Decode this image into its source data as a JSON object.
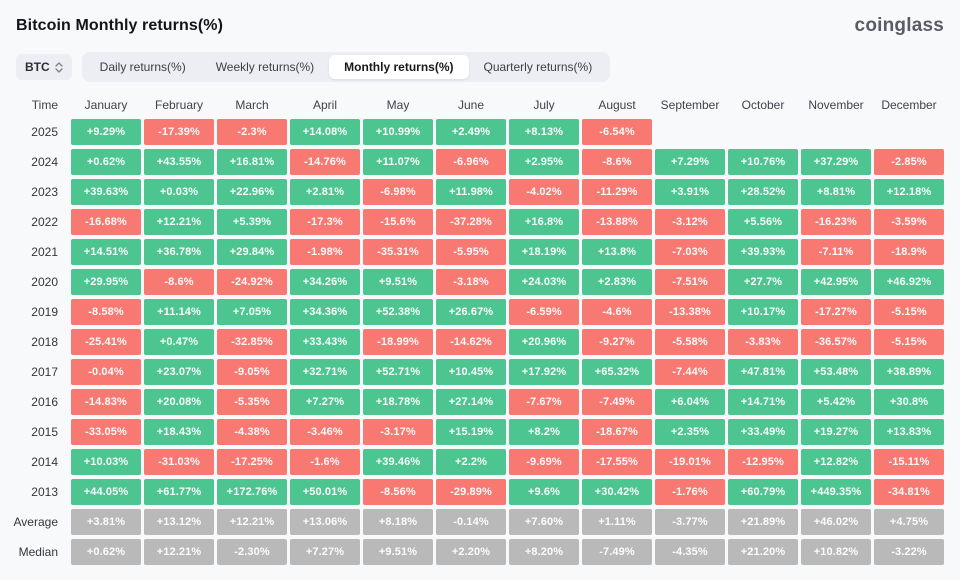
{
  "header": {
    "title": "Bitcoin Monthly returns(%)",
    "logo": "coinglass"
  },
  "controls": {
    "symbol": "BTC",
    "unfold_icon": "unfold-more-icon",
    "tabs": [
      {
        "label": "Daily returns(%)",
        "active": false
      },
      {
        "label": "Weekly returns(%)",
        "active": false
      },
      {
        "label": "Monthly returns(%)",
        "active": true
      },
      {
        "label": "Quarterly returns(%)",
        "active": false
      }
    ]
  },
  "colors": {
    "positive": "#4dc591",
    "negative": "#f87872",
    "summary": "#b9b9b9",
    "tab_bg": "#eceef3",
    "page_bg": "#f8f9fb"
  },
  "chart_data": {
    "type": "heatmap",
    "title": "Bitcoin Monthly returns(%)",
    "time_header": "Time",
    "months": [
      "January",
      "February",
      "March",
      "April",
      "May",
      "June",
      "July",
      "August",
      "September",
      "October",
      "November",
      "December"
    ],
    "rows": [
      {
        "label": "2025",
        "type": "year",
        "values": [
          "+9.29%",
          "-17.39%",
          "-2.3%",
          "+14.08%",
          "+10.99%",
          "+2.49%",
          "+8.13%",
          "-6.54%",
          null,
          null,
          null,
          null
        ]
      },
      {
        "label": "2024",
        "type": "year",
        "values": [
          "+0.62%",
          "+43.55%",
          "+16.81%",
          "-14.76%",
          "+11.07%",
          "-6.96%",
          "+2.95%",
          "-8.6%",
          "+7.29%",
          "+10.76%",
          "+37.29%",
          "-2.85%"
        ]
      },
      {
        "label": "2023",
        "type": "year",
        "values": [
          "+39.63%",
          "+0.03%",
          "+22.96%",
          "+2.81%",
          "-6.98%",
          "+11.98%",
          "-4.02%",
          "-11.29%",
          "+3.91%",
          "+28.52%",
          "+8.81%",
          "+12.18%"
        ]
      },
      {
        "label": "2022",
        "type": "year",
        "values": [
          "-16.68%",
          "+12.21%",
          "+5.39%",
          "-17.3%",
          "-15.6%",
          "-37.28%",
          "+16.8%",
          "-13.88%",
          "-3.12%",
          "+5.56%",
          "-16.23%",
          "-3.59%"
        ]
      },
      {
        "label": "2021",
        "type": "year",
        "values": [
          "+14.51%",
          "+36.78%",
          "+29.84%",
          "-1.98%",
          "-35.31%",
          "-5.95%",
          "+18.19%",
          "+13.8%",
          "-7.03%",
          "+39.93%",
          "-7.11%",
          "-18.9%"
        ]
      },
      {
        "label": "2020",
        "type": "year",
        "values": [
          "+29.95%",
          "-8.6%",
          "-24.92%",
          "+34.26%",
          "+9.51%",
          "-3.18%",
          "+24.03%",
          "+2.83%",
          "-7.51%",
          "+27.7%",
          "+42.95%",
          "+46.92%"
        ]
      },
      {
        "label": "2019",
        "type": "year",
        "values": [
          "-8.58%",
          "+11.14%",
          "+7.05%",
          "+34.36%",
          "+52.38%",
          "+26.67%",
          "-6.59%",
          "-4.6%",
          "-13.38%",
          "+10.17%",
          "-17.27%",
          "-5.15%"
        ]
      },
      {
        "label": "2018",
        "type": "year",
        "values": [
          "-25.41%",
          "+0.47%",
          "-32.85%",
          "+33.43%",
          "-18.99%",
          "-14.62%",
          "+20.96%",
          "-9.27%",
          "-5.58%",
          "-3.83%",
          "-36.57%",
          "-5.15%"
        ]
      },
      {
        "label": "2017",
        "type": "year",
        "values": [
          "-0.04%",
          "+23.07%",
          "-9.05%",
          "+32.71%",
          "+52.71%",
          "+10.45%",
          "+17.92%",
          "+65.32%",
          "-7.44%",
          "+47.81%",
          "+53.48%",
          "+38.89%"
        ]
      },
      {
        "label": "2016",
        "type": "year",
        "values": [
          "-14.83%",
          "+20.08%",
          "-5.35%",
          "+7.27%",
          "+18.78%",
          "+27.14%",
          "-7.67%",
          "-7.49%",
          "+6.04%",
          "+14.71%",
          "+5.42%",
          "+30.8%"
        ]
      },
      {
        "label": "2015",
        "type": "year",
        "values": [
          "-33.05%",
          "+18.43%",
          "-4.38%",
          "-3.46%",
          "-3.17%",
          "+15.19%",
          "+8.2%",
          "-18.67%",
          "+2.35%",
          "+33.49%",
          "+19.27%",
          "+13.83%"
        ]
      },
      {
        "label": "2014",
        "type": "year",
        "values": [
          "+10.03%",
          "-31.03%",
          "-17.25%",
          "-1.6%",
          "+39.46%",
          "+2.2%",
          "-9.69%",
          "-17.55%",
          "-19.01%",
          "-12.95%",
          "+12.82%",
          "-15.11%"
        ]
      },
      {
        "label": "2013",
        "type": "year",
        "values": [
          "+44.05%",
          "+61.77%",
          "+172.76%",
          "+50.01%",
          "-8.56%",
          "-29.89%",
          "+9.6%",
          "+30.42%",
          "-1.76%",
          "+60.79%",
          "+449.35%",
          "-34.81%"
        ]
      },
      {
        "label": "Average",
        "type": "summary",
        "values": [
          "+3.81%",
          "+13.12%",
          "+12.21%",
          "+13.06%",
          "+8.18%",
          "-0.14%",
          "+7.60%",
          "+1.11%",
          "-3.77%",
          "+21.89%",
          "+46.02%",
          "+4.75%"
        ]
      },
      {
        "label": "Median",
        "type": "summary",
        "values": [
          "+0.62%",
          "+12.21%",
          "-2.30%",
          "+7.27%",
          "+9.51%",
          "+2.20%",
          "+8.20%",
          "-7.49%",
          "-4.35%",
          "+21.20%",
          "+10.82%",
          "-3.22%"
        ]
      }
    ]
  }
}
